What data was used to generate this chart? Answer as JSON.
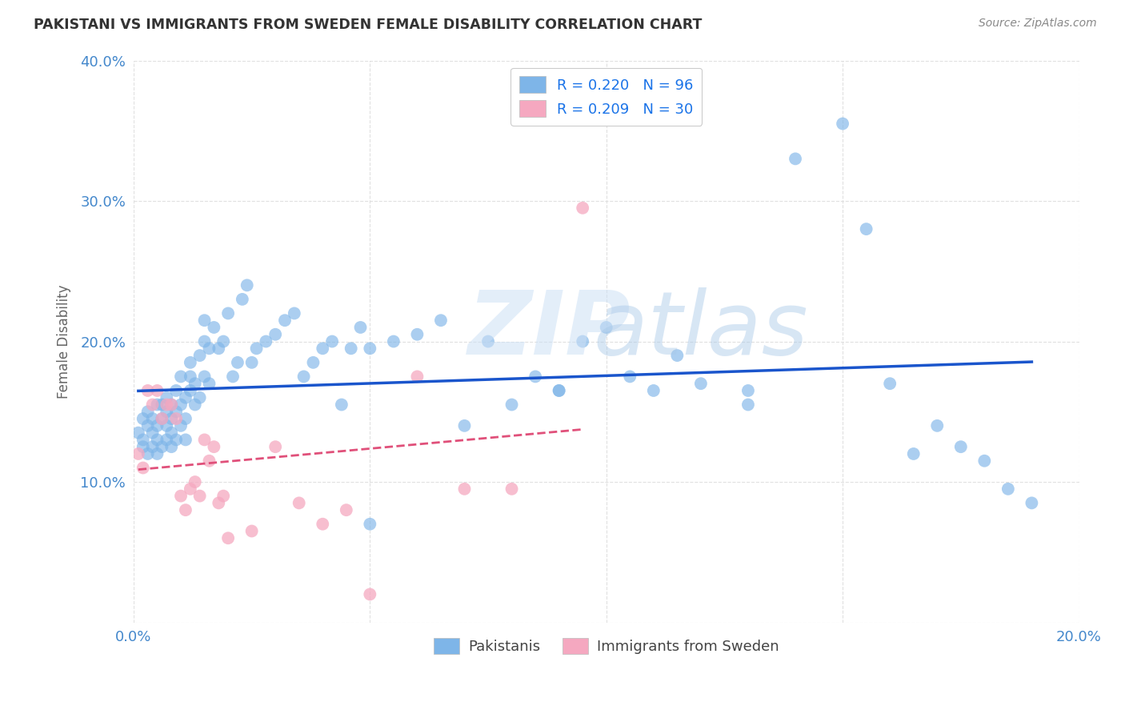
{
  "title": "PAKISTANI VS IMMIGRANTS FROM SWEDEN FEMALE DISABILITY CORRELATION CHART",
  "source": "Source: ZipAtlas.com",
  "ylabel": "Female Disability",
  "xlim": [
    0.0,
    0.2
  ],
  "ylim": [
    0.0,
    0.4
  ],
  "xticks": [
    0.0,
    0.05,
    0.1,
    0.15,
    0.2
  ],
  "yticks": [
    0.0,
    0.1,
    0.2,
    0.3,
    0.4
  ],
  "legend_labels": [
    "Pakistanis",
    "Immigrants from Sweden"
  ],
  "series1_color": "#7eb5e8",
  "series2_color": "#f5a8c0",
  "series1_line_color": "#1a55cc",
  "series2_line_color": "#e0507a",
  "series1_R": 0.22,
  "series1_N": 96,
  "series2_R": 0.209,
  "series2_N": 30,
  "legend_R_color": "#1a73e8",
  "background_color": "#ffffff",
  "grid_color": "#dddddd",
  "title_color": "#333333",
  "axis_label_color": "#4488cc",
  "pakistanis_x": [
    0.001,
    0.002,
    0.002,
    0.002,
    0.003,
    0.003,
    0.003,
    0.004,
    0.004,
    0.004,
    0.005,
    0.005,
    0.005,
    0.005,
    0.006,
    0.006,
    0.006,
    0.007,
    0.007,
    0.007,
    0.007,
    0.008,
    0.008,
    0.008,
    0.008,
    0.009,
    0.009,
    0.009,
    0.01,
    0.01,
    0.01,
    0.011,
    0.011,
    0.011,
    0.012,
    0.012,
    0.012,
    0.013,
    0.013,
    0.014,
    0.014,
    0.015,
    0.015,
    0.016,
    0.016,
    0.017,
    0.018,
    0.019,
    0.02,
    0.021,
    0.022,
    0.023,
    0.024,
    0.025,
    0.026,
    0.028,
    0.03,
    0.032,
    0.034,
    0.036,
    0.038,
    0.04,
    0.042,
    0.044,
    0.046,
    0.048,
    0.05,
    0.055,
    0.06,
    0.065,
    0.07,
    0.075,
    0.08,
    0.085,
    0.09,
    0.095,
    0.1,
    0.105,
    0.11,
    0.115,
    0.12,
    0.13,
    0.14,
    0.15,
    0.155,
    0.16,
    0.165,
    0.17,
    0.175,
    0.18,
    0.185,
    0.19,
    0.015,
    0.05,
    0.09,
    0.13
  ],
  "pakistanis_y": [
    0.135,
    0.125,
    0.145,
    0.13,
    0.14,
    0.12,
    0.15,
    0.125,
    0.135,
    0.145,
    0.13,
    0.14,
    0.155,
    0.12,
    0.125,
    0.145,
    0.155,
    0.14,
    0.13,
    0.15,
    0.16,
    0.135,
    0.145,
    0.155,
    0.125,
    0.13,
    0.15,
    0.165,
    0.14,
    0.155,
    0.175,
    0.16,
    0.145,
    0.13,
    0.165,
    0.175,
    0.185,
    0.155,
    0.17,
    0.16,
    0.19,
    0.215,
    0.2,
    0.17,
    0.195,
    0.21,
    0.195,
    0.2,
    0.22,
    0.175,
    0.185,
    0.23,
    0.24,
    0.185,
    0.195,
    0.2,
    0.205,
    0.215,
    0.22,
    0.175,
    0.185,
    0.195,
    0.2,
    0.155,
    0.195,
    0.21,
    0.195,
    0.2,
    0.205,
    0.215,
    0.14,
    0.2,
    0.155,
    0.175,
    0.165,
    0.2,
    0.21,
    0.175,
    0.165,
    0.19,
    0.17,
    0.165,
    0.33,
    0.355,
    0.28,
    0.17,
    0.12,
    0.14,
    0.125,
    0.115,
    0.095,
    0.085,
    0.175,
    0.07,
    0.165,
    0.155
  ],
  "immigrants_x": [
    0.001,
    0.002,
    0.003,
    0.004,
    0.005,
    0.006,
    0.007,
    0.008,
    0.009,
    0.01,
    0.011,
    0.012,
    0.013,
    0.014,
    0.015,
    0.016,
    0.017,
    0.018,
    0.019,
    0.02,
    0.025,
    0.03,
    0.035,
    0.04,
    0.045,
    0.05,
    0.06,
    0.07,
    0.08,
    0.095
  ],
  "immigrants_y": [
    0.12,
    0.11,
    0.165,
    0.155,
    0.165,
    0.145,
    0.155,
    0.155,
    0.145,
    0.09,
    0.08,
    0.095,
    0.1,
    0.09,
    0.13,
    0.115,
    0.125,
    0.085,
    0.09,
    0.06,
    0.065,
    0.125,
    0.085,
    0.07,
    0.08,
    0.02,
    0.175,
    0.095,
    0.095,
    0.295
  ]
}
